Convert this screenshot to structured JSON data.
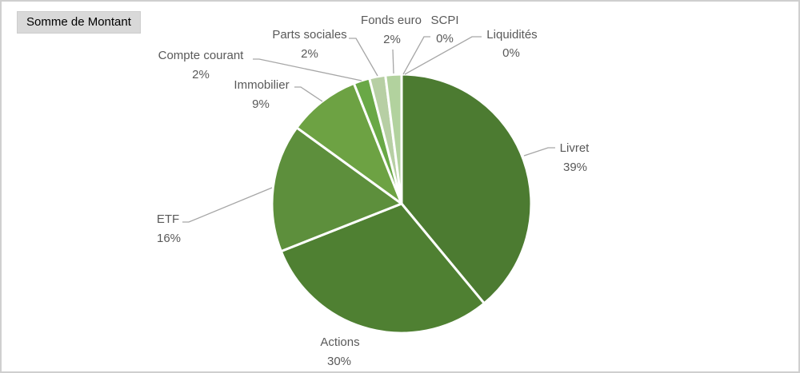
{
  "field_button": {
    "label": "Somme de Montant"
  },
  "chart_data": {
    "type": "pie",
    "title": "",
    "categories": [
      "Livret",
      "Actions",
      "ETF",
      "Immobilier",
      "Compte courant",
      "Parts sociales",
      "Fonds euro",
      "SCPI",
      "Liquidités"
    ],
    "values": [
      39,
      30,
      16,
      9,
      2,
      2,
      2,
      0,
      0
    ],
    "unit": "%",
    "colors": [
      "#4c7b31",
      "#4f8032",
      "#5d8f3c",
      "#6da243",
      "#69a846",
      "#b7cfa4",
      "#b2d29e",
      "#c9ddb9",
      "#d4e3c8"
    ],
    "start_angle_deg": 0,
    "direction": "clockwise",
    "legend_position": "none",
    "data_labels": "category name and percentage, outside end with leader lines",
    "label_color": "#595959",
    "leader_line_color": "#a6a6a6",
    "slice_border_color": "#ffffff"
  }
}
